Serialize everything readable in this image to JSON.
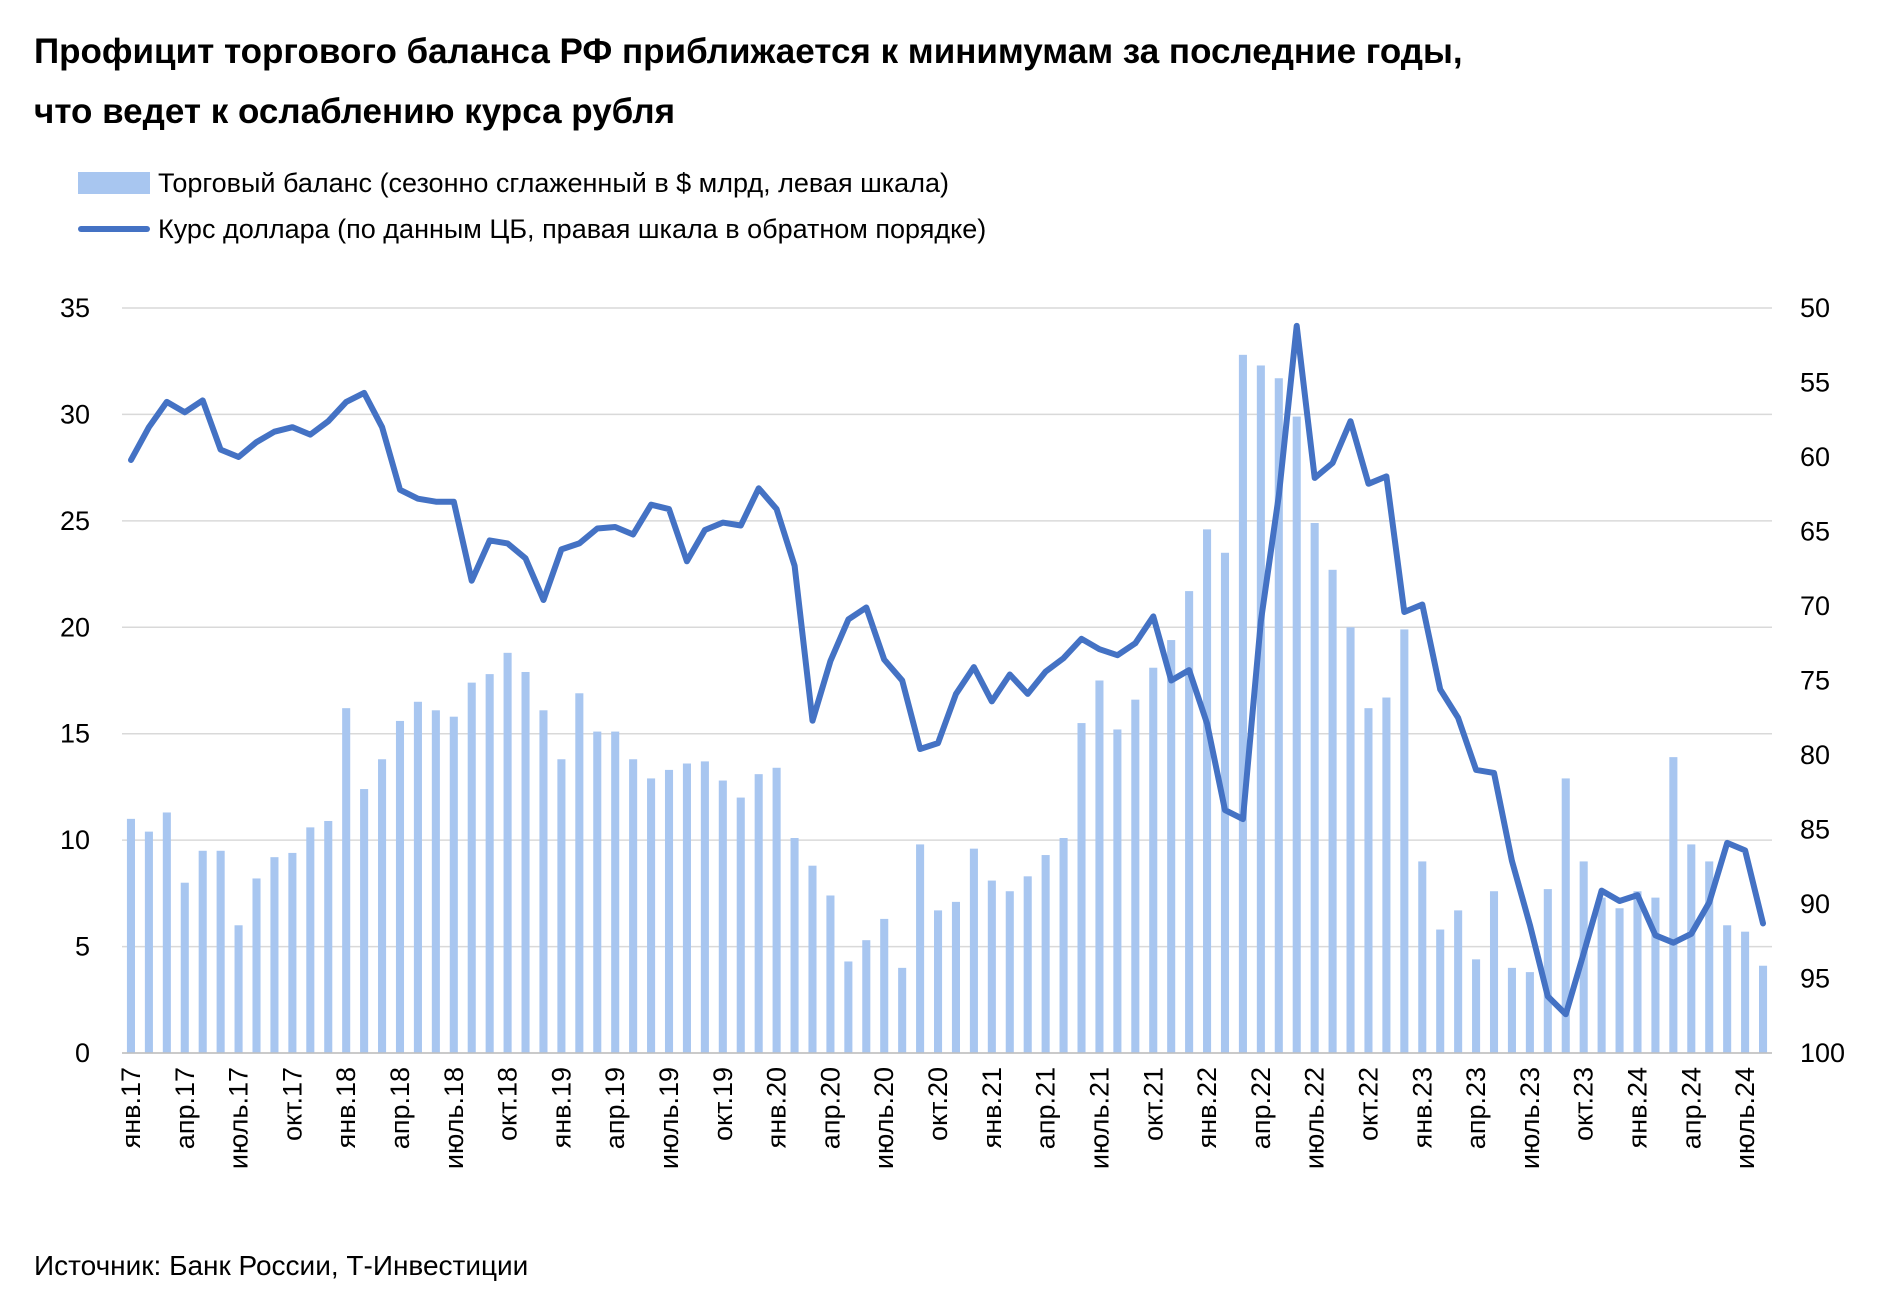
{
  "title_line1": "Профицит торгового баланса РФ приближается к минимумам за последние годы,",
  "title_line2": "что ведет к ослаблению курса рубля",
  "source": "Источник: Банк России, Т-Инвестиции",
  "colors": {
    "bars": "#a8c6f0",
    "line": "#4472c4",
    "grid": "#d9d9d9"
  },
  "chart_data": {
    "type": "bar+line",
    "grid": true,
    "legend_placement": "top-left",
    "series": [
      {
        "name": "Торговый баланс (сезонно сглаженный в $ млрд, левая шкала)",
        "type": "bar",
        "axis": "left",
        "values": [
          11.0,
          10.4,
          11.3,
          8.0,
          9.5,
          9.5,
          6.0,
          8.2,
          9.2,
          9.4,
          10.6,
          10.9,
          16.2,
          12.4,
          13.8,
          15.6,
          16.5,
          16.1,
          15.8,
          17.4,
          17.8,
          18.8,
          17.9,
          16.1,
          13.8,
          16.9,
          15.1,
          15.1,
          13.8,
          12.9,
          13.3,
          13.6,
          13.7,
          12.8,
          12.0,
          13.1,
          13.4,
          10.1,
          8.8,
          7.4,
          4.3,
          5.3,
          6.3,
          4.0,
          9.8,
          6.7,
          7.1,
          9.6,
          8.1,
          7.6,
          8.3,
          9.3,
          10.1,
          15.5,
          17.5,
          15.2,
          16.6,
          18.1,
          19.4,
          21.7,
          24.6,
          23.5,
          32.8,
          32.3,
          31.7,
          29.9,
          24.9,
          22.7,
          20.0,
          16.2,
          16.7,
          19.9,
          9.0,
          5.8,
          6.7,
          4.4,
          7.6,
          4.0,
          3.8,
          7.7,
          12.9,
          9.0,
          7.3,
          6.8,
          7.6,
          7.3,
          13.9,
          9.8,
          9.0,
          6.0,
          5.7,
          4.1
        ]
      },
      {
        "name": "Курс доллара (по данным ЦБ, правая шкала в обратном порядке)",
        "type": "line",
        "axis": "right",
        "values": [
          60.2,
          58.0,
          56.3,
          57.0,
          56.2,
          59.5,
          60.0,
          59.0,
          58.3,
          58.0,
          58.5,
          57.6,
          56.3,
          55.7,
          58.0,
          62.2,
          62.8,
          63.0,
          63.0,
          68.3,
          65.6,
          65.8,
          66.8,
          69.6,
          66.2,
          65.8,
          64.8,
          64.7,
          65.2,
          63.2,
          63.5,
          67.0,
          64.9,
          64.4,
          64.6,
          62.1,
          63.5,
          67.3,
          77.7,
          73.7,
          70.9,
          70.1,
          73.6,
          75.0,
          79.6,
          79.2,
          75.9,
          74.1,
          76.4,
          74.6,
          75.9,
          74.4,
          73.5,
          72.2,
          72.9,
          73.3,
          72.5,
          70.7,
          75.0,
          74.3,
          77.9,
          83.7,
          84.3,
          71.0,
          62.6,
          51.2,
          61.4,
          60.4,
          57.6,
          61.8,
          61.3,
          70.4,
          69.9,
          75.6,
          77.5,
          81.0,
          81.2,
          87.1,
          91.4,
          96.2,
          97.4,
          93.3,
          89.1,
          89.8,
          89.4,
          92.1,
          92.6,
          92.0,
          89.9,
          85.9,
          86.4,
          91.3
        ]
      }
    ],
    "x_tick_labels": [
      "янв.17",
      "апр.17",
      "июль.17",
      "окт.17",
      "янв.18",
      "апр.18",
      "июль.18",
      "окт.18",
      "янв.19",
      "апр.19",
      "июль.19",
      "окт.19",
      "янв.20",
      "апр.20",
      "июль.20",
      "окт.20",
      "янв.21",
      "апр.21",
      "июль.21",
      "окт.21",
      "янв.22",
      "апр.22",
      "июль.22",
      "окт.22",
      "янв.23",
      "апр.23",
      "июль.23",
      "окт.23",
      "янв.24",
      "апр.24",
      "июль.24"
    ],
    "x_tick_every": 3,
    "y_left": {
      "ticks": [
        "0",
        "5",
        "10",
        "15",
        "20",
        "25",
        "30",
        "35"
      ],
      "lim": [
        0,
        35
      ]
    },
    "y_right": {
      "ticks": [
        "50",
        "55",
        "60",
        "65",
        "70",
        "75",
        "80",
        "85",
        "90",
        "95",
        "100"
      ],
      "lim": [
        50,
        100
      ],
      "inverted": true
    }
  }
}
